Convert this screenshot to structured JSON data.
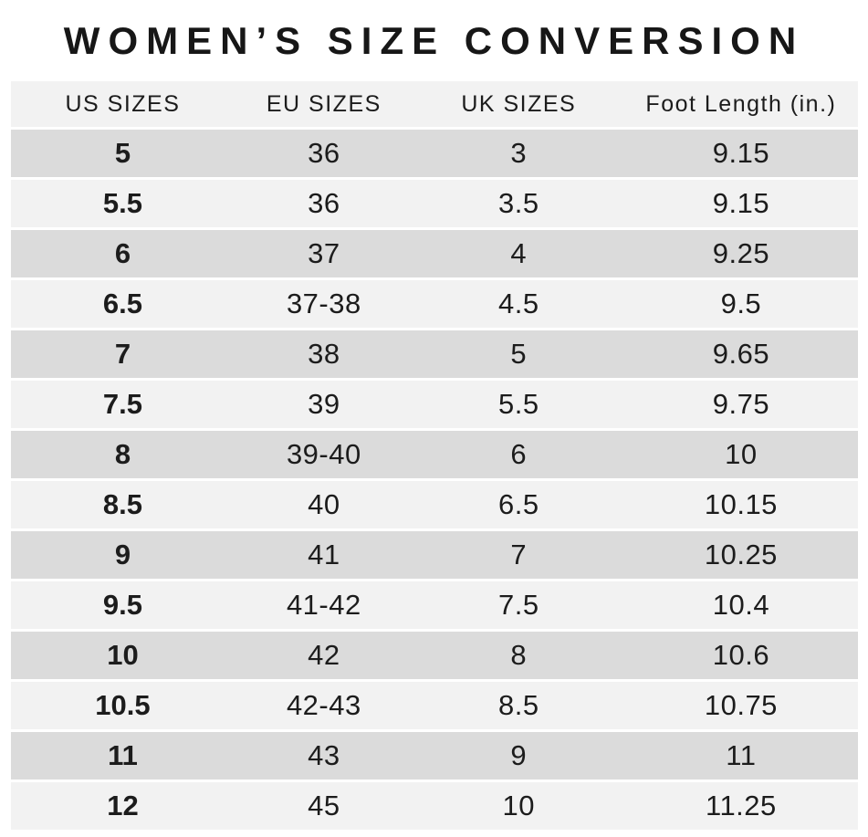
{
  "title": "WOMEN’S SIZE CONVERSION",
  "colors": {
    "background": "#ffffff",
    "header_row_bg": "#f2f2f2",
    "row_dark_bg": "#dbdbdb",
    "row_light_bg": "#f2f2f2",
    "text": "#1c1c1c"
  },
  "chart_data": {
    "type": "table",
    "title": "WOMEN’S SIZE CONVERSION",
    "columns": [
      "US SIZES",
      "EU SIZES",
      "UK SIZES",
      "Foot Length (in.)"
    ],
    "column_keys": [
      "us",
      "eu",
      "uk",
      "foot-length"
    ],
    "rows": [
      [
        "5",
        "36",
        "3",
        "9.15"
      ],
      [
        "5.5",
        "36",
        "3.5",
        "9.15"
      ],
      [
        "6",
        "37",
        "4",
        "9.25"
      ],
      [
        "6.5",
        "37-38",
        "4.5",
        "9.5"
      ],
      [
        "7",
        "38",
        "5",
        "9.65"
      ],
      [
        "7.5",
        "39",
        "5.5",
        "9.75"
      ],
      [
        "8",
        "39-40",
        "6",
        "10"
      ],
      [
        "8.5",
        "40",
        "6.5",
        "10.15"
      ],
      [
        "9",
        "41",
        "7",
        "10.25"
      ],
      [
        "9.5",
        "41-42",
        "7.5",
        "10.4"
      ],
      [
        "10",
        "42",
        "8",
        "10.6"
      ],
      [
        "10.5",
        "42-43",
        "8.5",
        "10.75"
      ],
      [
        "11",
        "43",
        "9",
        "11"
      ],
      [
        "12",
        "45",
        "10",
        "11.25"
      ]
    ],
    "layout": {
      "row_striping": "alternating starting dark",
      "first_column_bold": true
    }
  }
}
